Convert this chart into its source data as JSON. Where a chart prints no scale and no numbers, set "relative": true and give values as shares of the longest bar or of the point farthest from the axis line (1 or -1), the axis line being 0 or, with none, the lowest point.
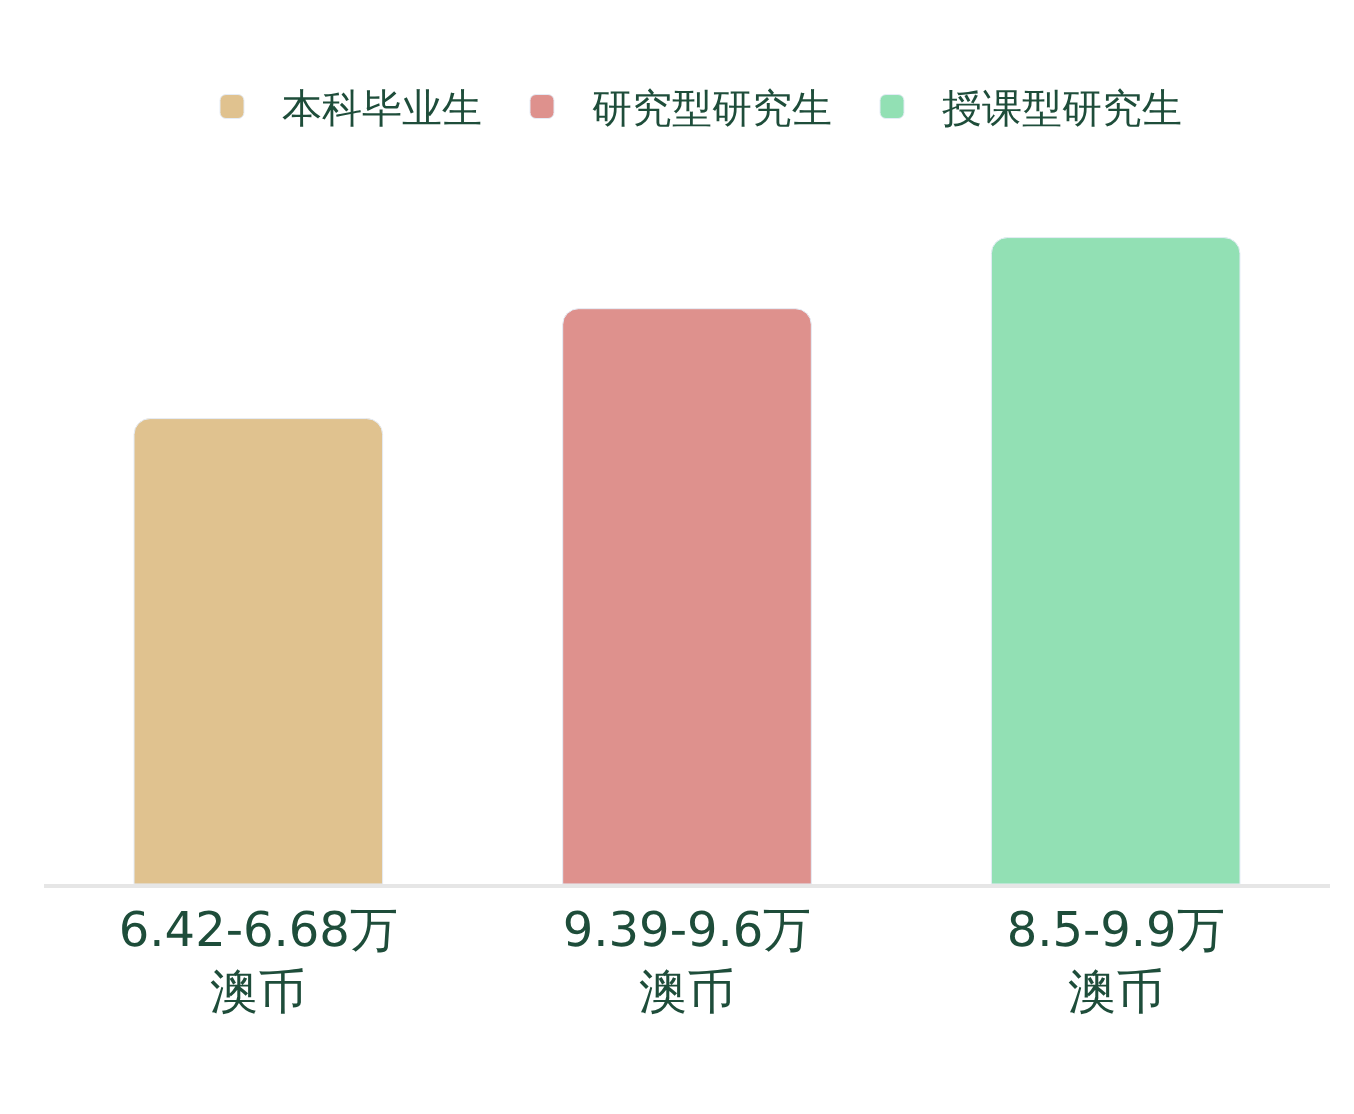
{
  "chart_data": {
    "type": "bar",
    "relative": true,
    "legend": "top",
    "categories": [
      "6.42-6.68万澳币",
      "9.39-9.6万澳币",
      "8.5-9.9万澳币"
    ],
    "series": [
      {
        "name": "本科毕业生",
        "color": "#e0c28f",
        "values": [
          0.72,
          null,
          null
        ]
      },
      {
        "name": "研究型研究生",
        "color": "#de918d",
        "values": [
          null,
          0.89,
          null
        ]
      },
      {
        "name": "授课型研究生",
        "color": "#92e0b4",
        "values": [
          null,
          null,
          1
        ]
      }
    ]
  }
}
